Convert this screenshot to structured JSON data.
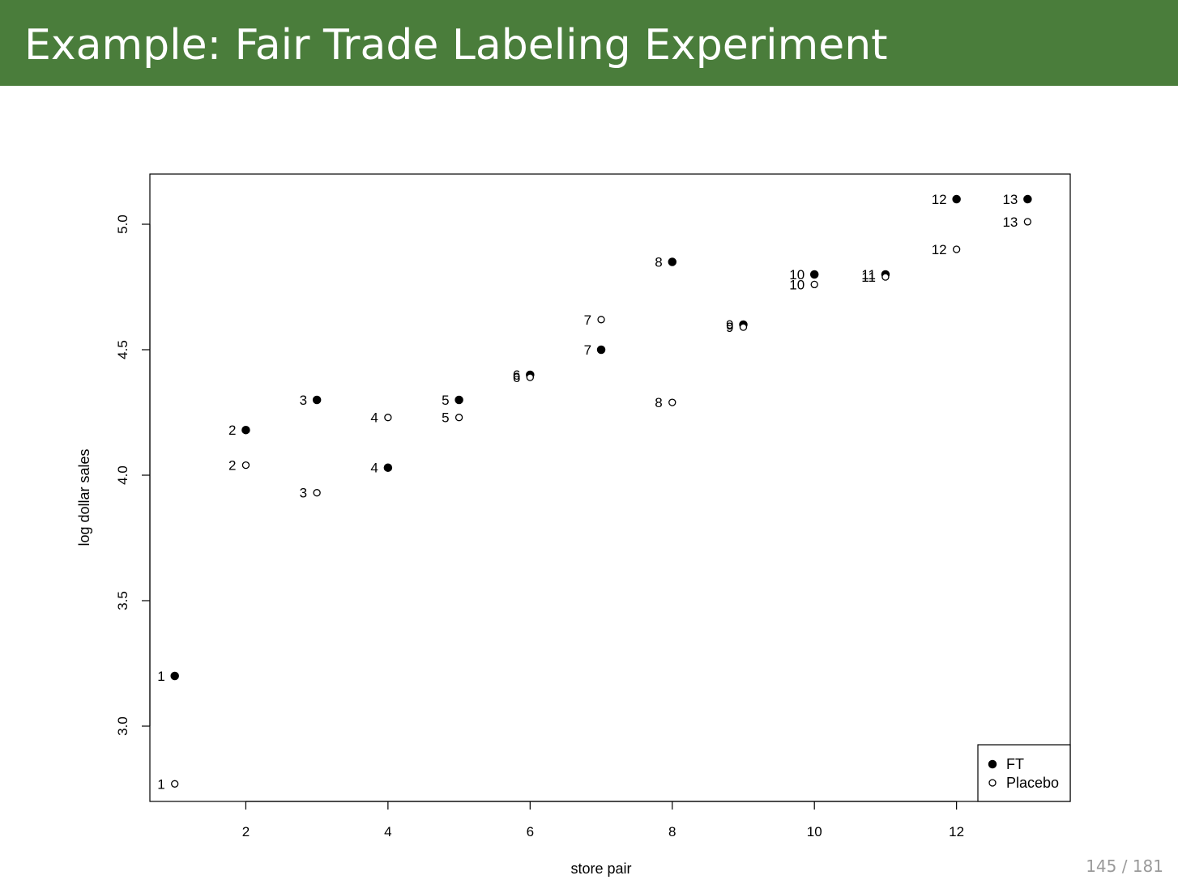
{
  "slide": {
    "title": "Example: Fair Trade Labeling Experiment",
    "page_number": "145 / 181"
  },
  "colors": {
    "title_bar": "#4a7d3b",
    "title_text": "#ffffff",
    "page_number": "#9a9a9a"
  },
  "chart_data": {
    "type": "scatter",
    "title": "",
    "xlabel": "store pair",
    "ylabel": "log dollar sales",
    "xlim": [
      0.65,
      13.6
    ],
    "ylim": [
      2.7,
      5.2
    ],
    "xticks": [
      2,
      4,
      6,
      8,
      10,
      12
    ],
    "yticks": [
      3.0,
      3.5,
      4.0,
      4.5,
      5.0
    ],
    "xtick_labels": [
      "2",
      "4",
      "6",
      "8",
      "10",
      "12"
    ],
    "ytick_labels": [
      "3.0",
      "3.5",
      "4.0",
      "4.5",
      "5.0"
    ],
    "grid": false,
    "legend": {
      "placement": "bottom-right",
      "entries": [
        {
          "label": "FT",
          "marker": "filled-circle"
        },
        {
          "label": "Placebo",
          "marker": "open-circle"
        }
      ]
    },
    "series": [
      {
        "name": "FT",
        "marker": "filled-circle",
        "x": [
          1,
          2,
          3,
          4,
          5,
          6,
          7,
          8,
          9,
          10,
          11,
          12,
          13
        ],
        "y": [
          3.2,
          4.18,
          4.3,
          4.03,
          4.3,
          4.4,
          4.5,
          4.85,
          4.6,
          4.8,
          4.8,
          5.1,
          5.1
        ],
        "point_labels": [
          "1",
          "2",
          "3",
          "4",
          "5",
          "6",
          "7",
          "8",
          "9",
          "10",
          "11",
          "12",
          "13"
        ]
      },
      {
        "name": "Placebo",
        "marker": "open-circle",
        "x": [
          1,
          2,
          3,
          4,
          5,
          6,
          7,
          8,
          9,
          10,
          11,
          12,
          13
        ],
        "y": [
          2.77,
          4.04,
          3.93,
          4.23,
          4.23,
          4.39,
          4.62,
          4.29,
          4.59,
          4.76,
          4.79,
          4.9,
          5.01
        ],
        "point_labels": [
          "1",
          "2",
          "3",
          "4",
          "5",
          "6",
          "7",
          "8",
          "9",
          "10",
          "11",
          "12",
          "13"
        ]
      }
    ]
  }
}
